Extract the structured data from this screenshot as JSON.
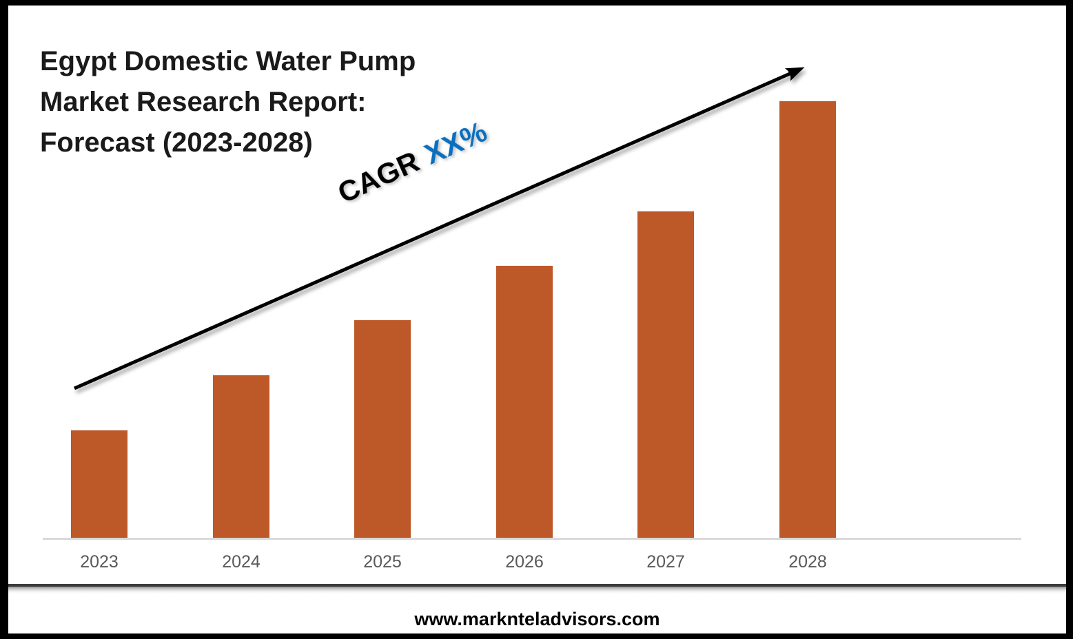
{
  "title": {
    "lines": [
      "Egypt Domestic Water Pump",
      "Market Research Report:",
      "Forecast (2023-2028)"
    ]
  },
  "cagr": {
    "prefix": "CAGR",
    "value": "XX%",
    "prefix_color": "#000000",
    "value_color": "#0b6fbf"
  },
  "footer": {
    "website": "www.marknteladvisors.com"
  },
  "colors": {
    "bar": "#bd5829",
    "axis_line": "#d9d9d9",
    "axis_label": "#595959",
    "frame_border": "#000000"
  },
  "chart_data": {
    "type": "bar",
    "title": "Egypt Domestic Water Pump Market Research Report: Forecast (2023-2028)",
    "categories": [
      "2023",
      "2024",
      "2025",
      "2026",
      "2027",
      "2028"
    ],
    "values": [
      157,
      237,
      317,
      396,
      475,
      635
    ],
    "values_note": "no numeric value axis shown in chart; values are relative bar heights in px",
    "xlabel": "",
    "ylabel": "",
    "value_axis_visible": false,
    "gridlines": false,
    "legend": false,
    "bar_color": "#bd5829",
    "annotations": [
      {
        "text": "CAGR XX%",
        "rotation_deg": -24
      }
    ],
    "trend_arrow": {
      "present": true,
      "direction": "up-right",
      "color": "#000000"
    }
  }
}
